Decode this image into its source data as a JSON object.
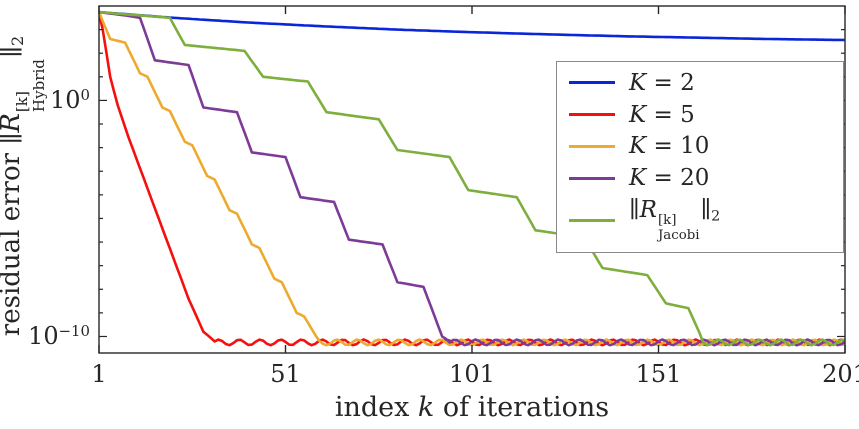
{
  "figure": {
    "background": "#ffffff",
    "axis_color": "#262626",
    "legend_border_color": "#8a8a8a"
  },
  "chart_data": {
    "type": "line",
    "title": "",
    "x_axis": {
      "label_parts": [
        {
          "t": "index "
        },
        {
          "i": "k"
        },
        {
          "t": " of iterations"
        }
      ],
      "ticks": [
        1,
        51,
        101,
        151,
        201
      ],
      "lim": [
        1,
        201
      ],
      "scale": "linear"
    },
    "y_axis": {
      "label_parts": [
        {
          "t": "residual error "
        },
        {
          "t": "∥"
        },
        {
          "i": "R"
        },
        {
          "supsub": [
            "[k]",
            "Hybrid"
          ]
        },
        {
          "t": "∥"
        },
        {
          "sub": "2"
        }
      ],
      "ticks_exp": [
        0,
        -10
      ],
      "minor_ticks_exp": [
        -10,
        -9,
        -8,
        -7,
        -6,
        -5,
        -4,
        -3,
        -2,
        -1,
        0,
        1,
        2,
        3
      ],
      "lim_exp": [
        -10.7,
        4
      ],
      "scale": "log"
    },
    "grid": false,
    "noise_floor": {
      "level": -10.25,
      "amp": 0.12
    },
    "legend": {
      "position": "top-right",
      "entries": [
        {
          "color": "#0a26d9",
          "parts": [
            {
              "i": "K"
            },
            {
              "t": " = 2"
            }
          ]
        },
        {
          "color": "#f50f0f",
          "parts": [
            {
              "i": "K"
            },
            {
              "t": " = 5"
            }
          ]
        },
        {
          "color": "#edaa2e",
          "parts": [
            {
              "i": "K"
            },
            {
              "t": " = 10"
            }
          ]
        },
        {
          "color": "#7d3a96",
          "parts": [
            {
              "i": "K"
            },
            {
              "t": " = 20"
            }
          ]
        },
        {
          "color": "#7dae3e",
          "parts": [
            {
              "t": "∥"
            },
            {
              "i": "R"
            },
            {
              "supsub": [
                "[k]",
                "Jacobi"
              ]
            },
            {
              "t": "∥"
            },
            {
              "sub": "2"
            }
          ]
        }
      ]
    },
    "series": [
      {
        "name": "K = 2",
        "color": "#0a26d9",
        "points_log10": [
          [
            1,
            3.74
          ],
          [
            21,
            3.5
          ],
          [
            41,
            3.3
          ],
          [
            61,
            3.14
          ],
          [
            81,
            3.0
          ],
          [
            101,
            2.89
          ],
          [
            121,
            2.8
          ],
          [
            141,
            2.72
          ],
          [
            161,
            2.66
          ],
          [
            181,
            2.6
          ],
          [
            201,
            2.56
          ]
        ]
      },
      {
        "name": "K = 5",
        "color": "#f50f0f",
        "floor_start": 32,
        "points_log10": [
          [
            1,
            3.74
          ],
          [
            2,
            3.0
          ],
          [
            4,
            1.0
          ],
          [
            6,
            -0.2
          ],
          [
            9,
            -1.6
          ],
          [
            13,
            -3.3
          ],
          [
            17,
            -5.0
          ],
          [
            21,
            -6.7
          ],
          [
            25,
            -8.4
          ],
          [
            29,
            -9.8
          ],
          [
            32,
            -10.2
          ]
        ]
      },
      {
        "name": "K = 10",
        "color": "#edaa2e",
        "floor_start": 60,
        "points_log10": [
          [
            1,
            3.74
          ],
          [
            4,
            2.6
          ],
          [
            8,
            2.45
          ],
          [
            12,
            1.15
          ],
          [
            14,
            1.0
          ],
          [
            18,
            -0.3
          ],
          [
            20,
            -0.45
          ],
          [
            24,
            -1.75
          ],
          [
            26,
            -1.9
          ],
          [
            30,
            -3.2
          ],
          [
            32,
            -3.35
          ],
          [
            36,
            -4.65
          ],
          [
            38,
            -4.8
          ],
          [
            42,
            -6.1
          ],
          [
            44,
            -6.25
          ],
          [
            48,
            -7.55
          ],
          [
            50,
            -7.7
          ],
          [
            54,
            -9.0
          ],
          [
            56,
            -9.15
          ],
          [
            60,
            -10.2
          ]
        ]
      },
      {
        "name": "K = 20",
        "color": "#7d3a96",
        "floor_start": 95,
        "points_log10": [
          [
            1,
            3.74
          ],
          [
            8,
            3.6
          ],
          [
            12,
            3.5
          ],
          [
            16,
            1.7
          ],
          [
            25,
            1.5
          ],
          [
            29,
            -0.3
          ],
          [
            38,
            -0.5
          ],
          [
            42,
            -2.2
          ],
          [
            51,
            -2.4
          ],
          [
            55,
            -4.1
          ],
          [
            64,
            -4.3
          ],
          [
            68,
            -5.9
          ],
          [
            77,
            -6.1
          ],
          [
            81,
            -7.7
          ],
          [
            88,
            -7.9
          ],
          [
            93,
            -10.0
          ],
          [
            95,
            -10.2
          ]
        ]
      },
      {
        "name": "Jacobi residual",
        "color": "#7dae3e",
        "floor_start": 163,
        "points_log10": [
          [
            1,
            3.74
          ],
          [
            8,
            3.65
          ],
          [
            20,
            3.5
          ],
          [
            24,
            2.35
          ],
          [
            40,
            2.1
          ],
          [
            45,
            1.0
          ],
          [
            57,
            0.8
          ],
          [
            62,
            -0.5
          ],
          [
            76,
            -0.8
          ],
          [
            81,
            -2.1
          ],
          [
            95,
            -2.4
          ],
          [
            100,
            -3.8
          ],
          [
            113,
            -4.1
          ],
          [
            118,
            -5.5
          ],
          [
            131,
            -5.8
          ],
          [
            136,
            -7.1
          ],
          [
            148,
            -7.4
          ],
          [
            153,
            -8.6
          ],
          [
            159,
            -8.8
          ],
          [
            163,
            -10.2
          ]
        ]
      }
    ]
  }
}
